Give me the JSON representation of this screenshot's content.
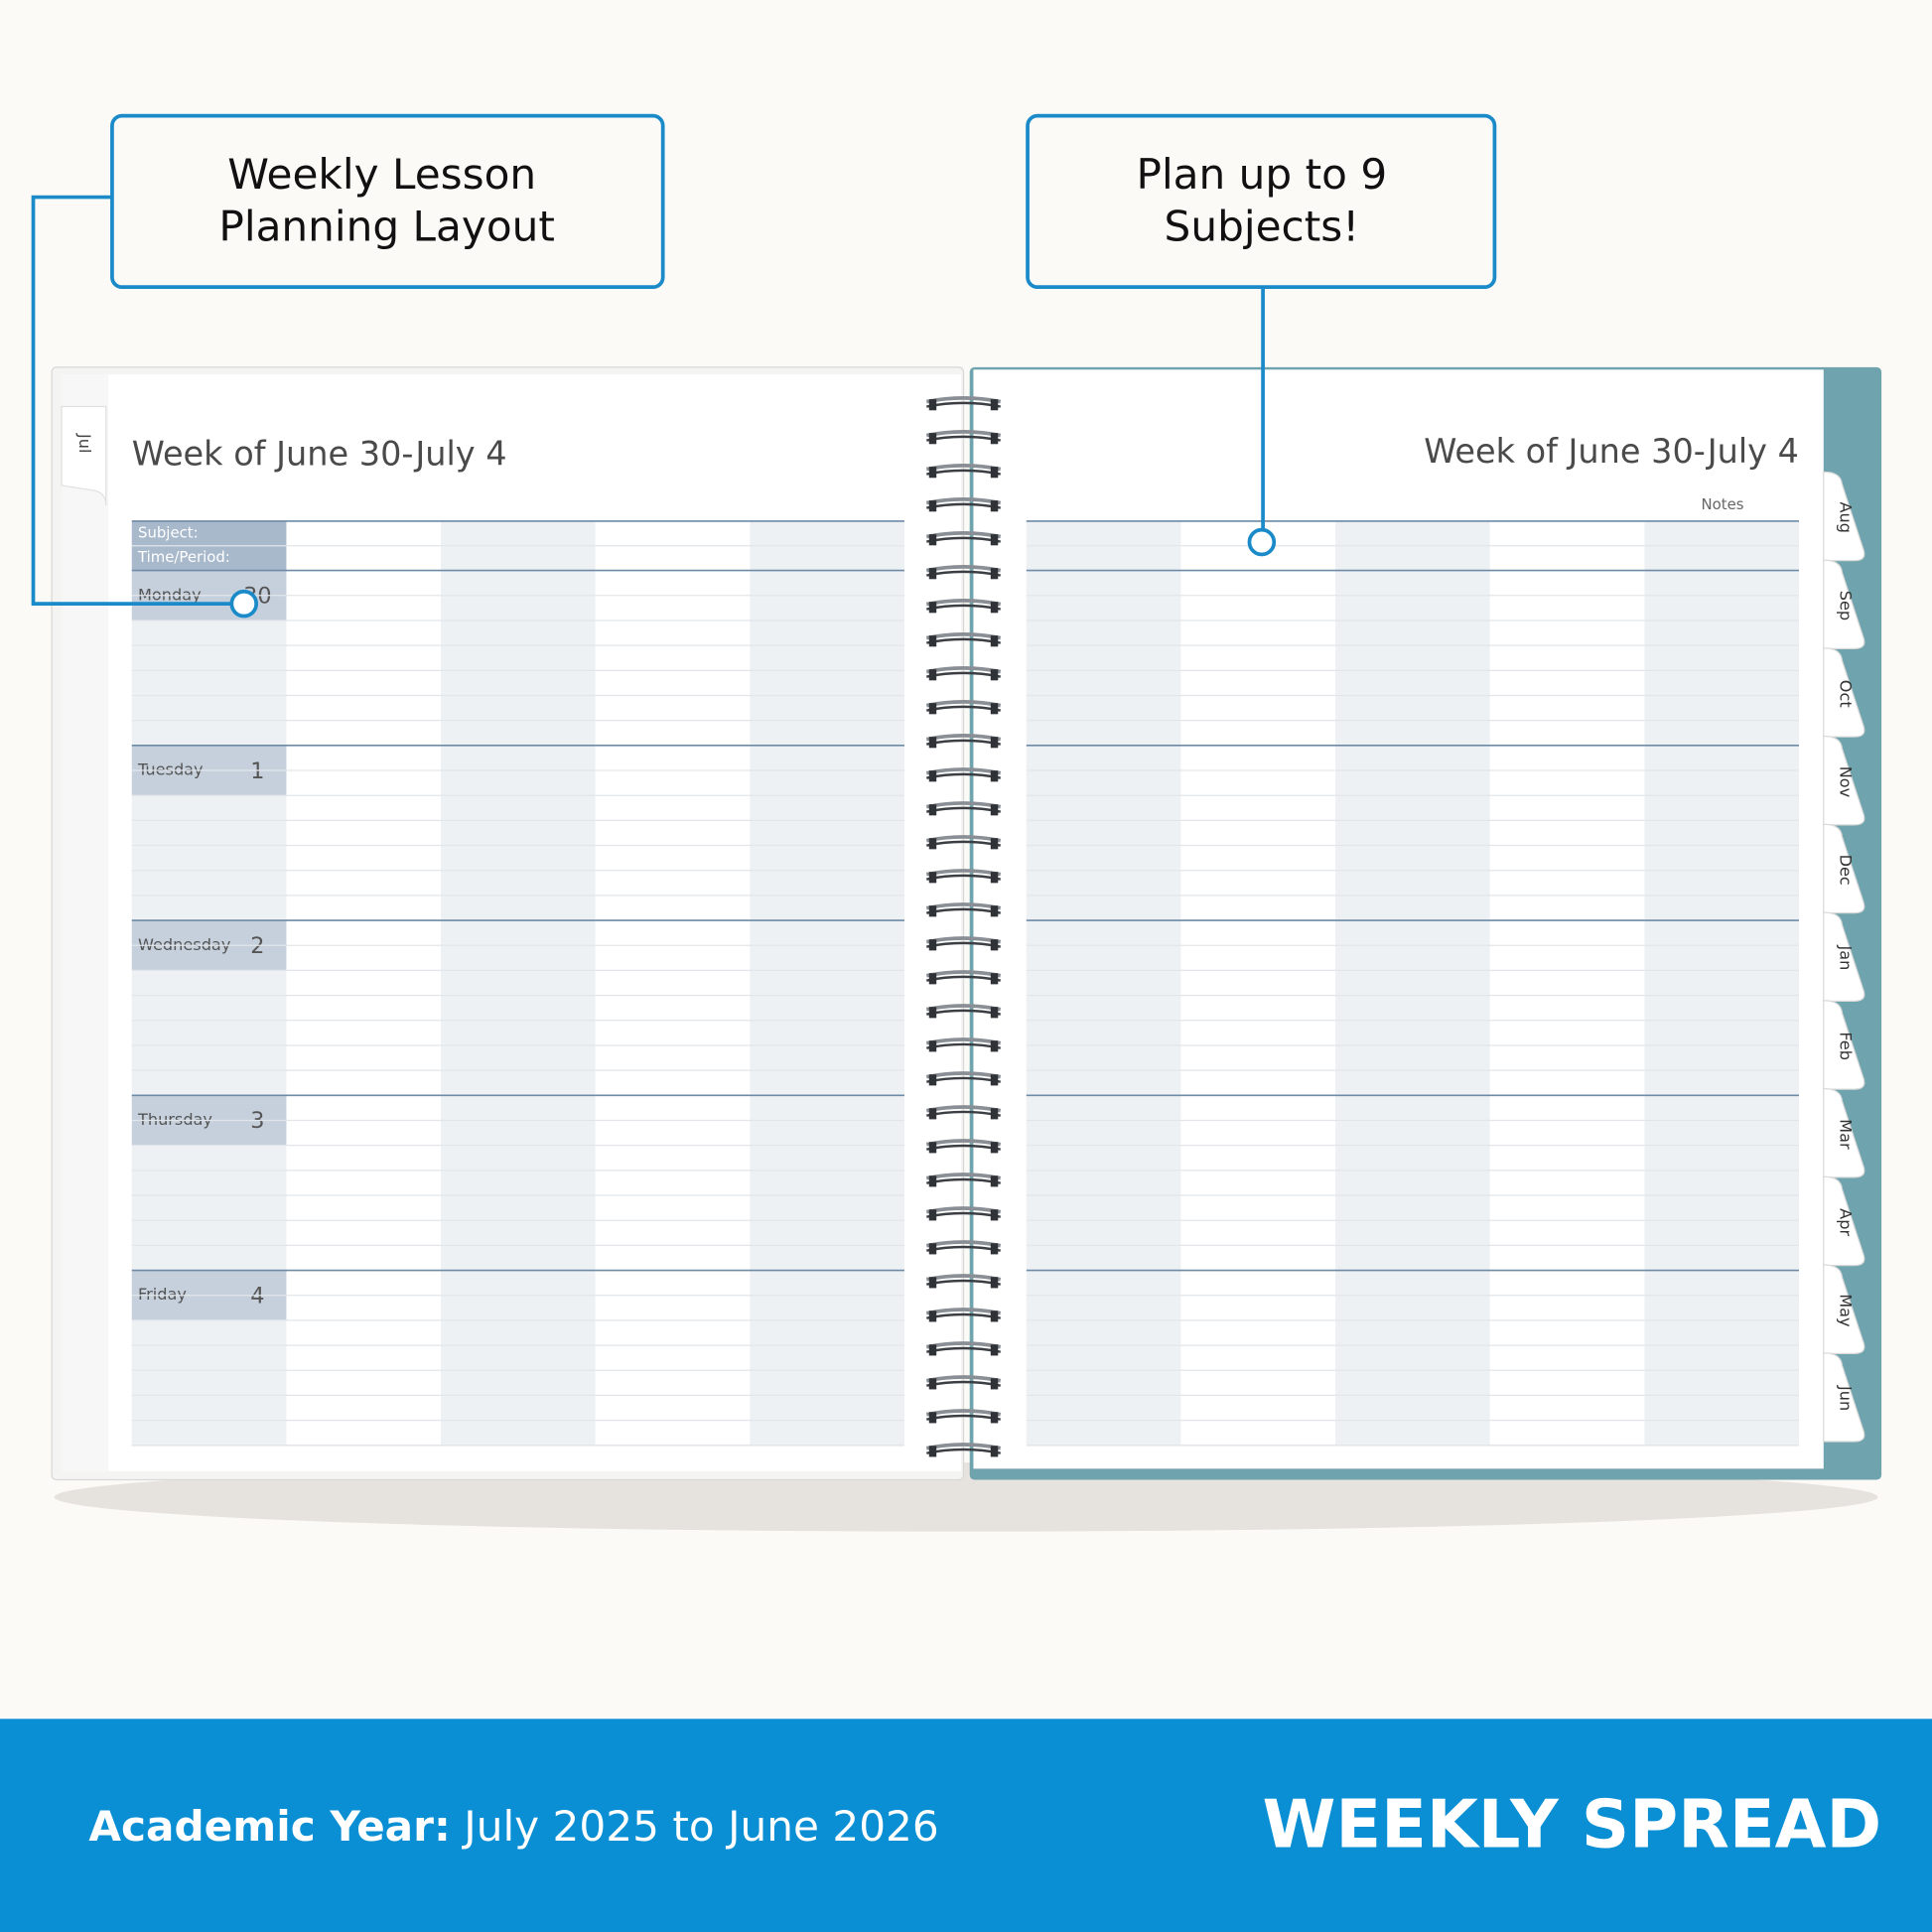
{
  "callouts": [
    {
      "lines": [
        "Weekly Lesson",
        "Planning Layout"
      ]
    },
    {
      "lines": [
        "Plan up to 9",
        "Subjects!"
      ]
    }
  ],
  "left_page": {
    "tab": "Jul",
    "title": "Week of June 30-July 4",
    "header_labels": [
      "Subject:",
      "Time/Period:"
    ],
    "days": [
      {
        "name": "Monday",
        "date": 30
      },
      {
        "name": "Tuesday",
        "date": 1
      },
      {
        "name": "Wednesday",
        "date": 2
      },
      {
        "name": "Thursday",
        "date": 3
      },
      {
        "name": "Friday",
        "date": 4
      }
    ]
  },
  "right_page": {
    "title": "Week of June 30-July 4",
    "notes": "Notes",
    "tabs": [
      "Aug",
      "Sep",
      "Oct",
      "Nov",
      "Dec",
      "Jan",
      "Feb",
      "Mar",
      "Apr",
      "May",
      "Jun"
    ]
  },
  "footer": {
    "label": "Academic Year:",
    "range": "July 2025 to June 2026",
    "title": "WEEKLY SPREAD"
  }
}
